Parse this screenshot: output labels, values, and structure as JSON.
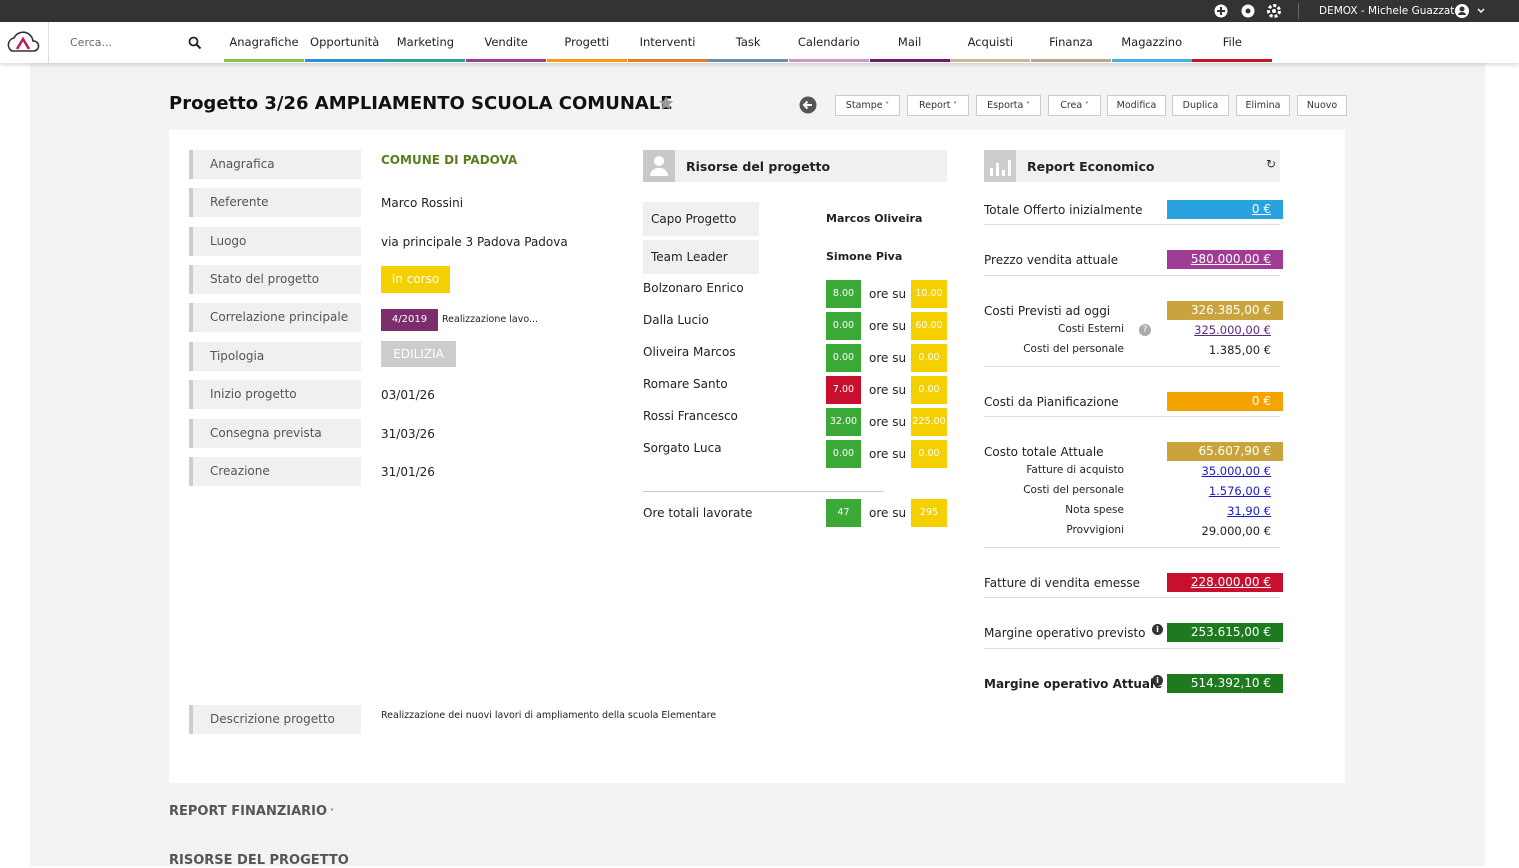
{
  "topbar": {
    "account": "DEMOX - Michele Guazzato"
  },
  "nav": {
    "search": "Cerca...",
    "items": [
      "Anagrafiche",
      "Opportunità",
      "Marketing",
      "Vendite",
      "Progetti",
      "Interventi",
      "Task",
      "Calendario",
      "Mail",
      "Acquisti",
      "Finanza",
      "Magazzino",
      "File"
    ]
  },
  "header": {
    "title": "Progetto 3/26 AMPLIAMENTO SCUOLA COMUNALE",
    "menus": [
      "Stampe",
      "Report",
      "Esporta",
      "Crea"
    ],
    "buttons": [
      "Modifica",
      "Duplica",
      "Elimina",
      "Nuovo"
    ]
  },
  "details": {
    "rows": [
      {
        "label": "Anagrafica",
        "value": "COMUNE DI PADOVA"
      },
      {
        "label": "Referente",
        "value": "Marco Rossini"
      },
      {
        "label": "Luogo",
        "value": "via principale 3 Padova Padova"
      },
      {
        "label": "Stato del progetto",
        "value": "In corso"
      },
      {
        "label": "Correlazione principale",
        "code": "4/2019",
        "value": "Realizzazione lavo..."
      },
      {
        "label": "Tipologia",
        "value": "EDILIZIA"
      },
      {
        "label": "Inizio progetto",
        "value": "03/01/26"
      },
      {
        "label": "Consegna prevista",
        "value": "31/03/26"
      },
      {
        "label": "Creazione",
        "value": "31/01/26"
      }
    ],
    "description": {
      "label": "Descrizione progetto",
      "value": "Realizzazione dei nuovi lavori di ampliamento della scuola Elementare"
    }
  },
  "resources": {
    "title": "Risorse del progetto",
    "roles": [
      {
        "role": "Capo Progetto",
        "name": "Marcos Oliveira"
      },
      {
        "role": "Team Leader",
        "name": "Simone Piva"
      }
    ],
    "separator": "ore su",
    "members": [
      {
        "name": "Bolzonaro Enrico",
        "worked": "8.00",
        "planned": "10.00"
      },
      {
        "name": "Dalla Lucio",
        "worked": "0.00",
        "planned": "60.00"
      },
      {
        "name": "Oliveira Marcos",
        "worked": "0.00",
        "planned": "0.00"
      },
      {
        "name": "Romare Santo",
        "worked": "7.00",
        "planned": "0.00"
      },
      {
        "name": "Rossi Francesco",
        "worked": "32.00",
        "planned": "225.00"
      },
      {
        "name": "Sorgato Luca",
        "worked": "0.00",
        "planned": "0.00"
      }
    ],
    "total": {
      "label": "Ore totali lavorate",
      "worked": "47",
      "planned": "295"
    }
  },
  "report": {
    "title": "Report Economico",
    "sections": [
      {
        "label": "Totale Offerto inizialmente",
        "value": "0 €",
        "sub": []
      },
      {
        "label": "Prezzo vendita attuale",
        "value": "580.000,00 €",
        "sub": []
      },
      {
        "label": "Costi Previsti ad oggi",
        "value": "326.385,00 €",
        "sub": [
          {
            "label": "Costi Esterni",
            "value": "325.000,00 €"
          },
          {
            "label": "Costi del personale",
            "value": "1.385,00 €"
          }
        ]
      },
      {
        "label": "Costi da Pianificazione",
        "value": "0 €",
        "sub": []
      },
      {
        "label": "Costo totale Attuale",
        "value": "65.607,90 €",
        "sub": [
          {
            "label": "Fatture di acquisto",
            "value": "35.000,00 €"
          },
          {
            "label": "Costi del personale",
            "value": "1.576,00 €"
          },
          {
            "label": "Nota spese",
            "value": "31,90 €"
          },
          {
            "label": "Provvigioni",
            "value": "29.000,00 €"
          }
        ]
      },
      {
        "label": "Fatture di vendita emesse",
        "value": "228.000,00 €",
        "sub": []
      },
      {
        "label": "Margine operativo previsto",
        "value": "253.615,00 €",
        "sub": []
      },
      {
        "label": "Margine operativo Attuale",
        "value": "514.392,10 €",
        "sub": []
      }
    ]
  },
  "bottom": {
    "sections": [
      "REPORT FINANZIARIO",
      "RISORSE DEL PROGETTO"
    ]
  }
}
